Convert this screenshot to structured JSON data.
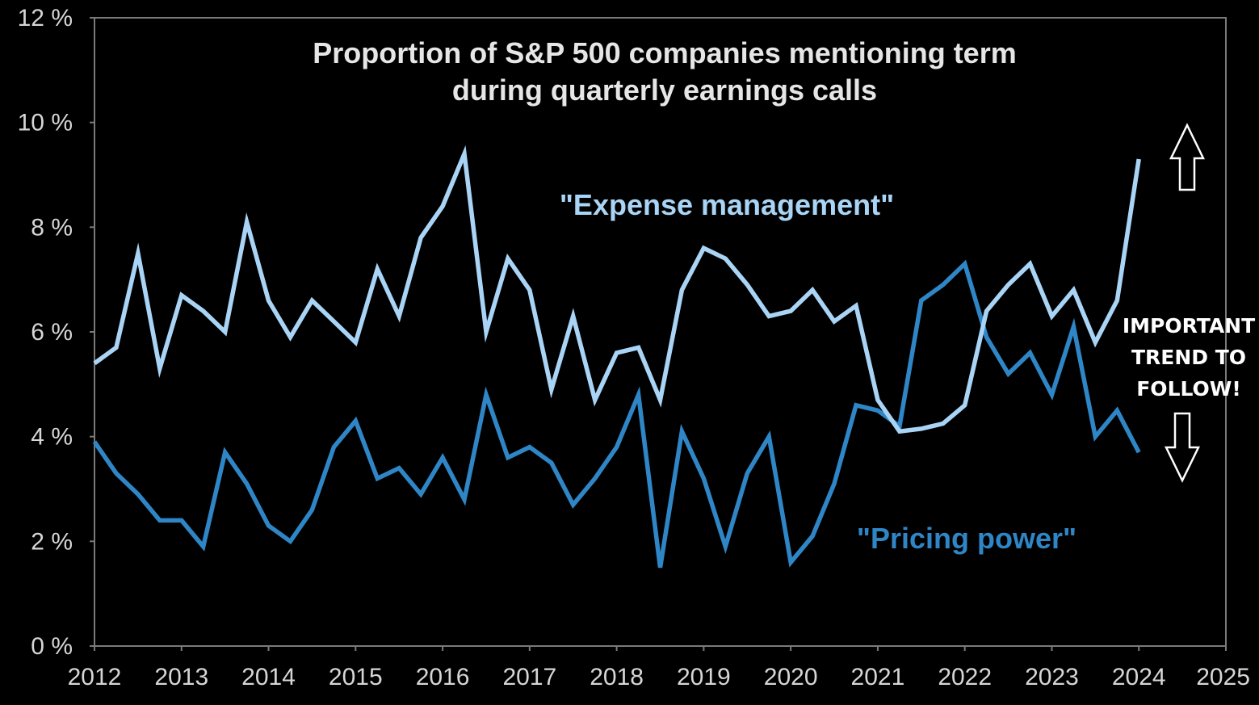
{
  "chart_data": {
    "type": "line",
    "title_lines": [
      "Proportion of S&P 500 companies mentioning term",
      "during quarterly earnings calls"
    ],
    "xlabel": "",
    "ylabel": "",
    "xlim": [
      2012,
      2025
    ],
    "ylim": [
      0,
      12
    ],
    "x_ticks": [
      2012,
      2013,
      2014,
      2015,
      2016,
      2017,
      2018,
      2019,
      2020,
      2021,
      2022,
      2023,
      2024,
      2025
    ],
    "x_tick_labels": [
      "2012",
      "2013",
      "2014",
      "2015",
      "2016",
      "2017",
      "2018",
      "2019",
      "2020",
      "2021",
      "2022",
      "2023",
      "2024",
      "2025"
    ],
    "y_ticks": [
      0,
      2,
      4,
      6,
      8,
      10,
      12
    ],
    "y_tick_labels": [
      "0 %",
      "2 %",
      "4 %",
      "6 %",
      "8 %",
      "10 %",
      "12 %"
    ],
    "grid": false,
    "legend": "none",
    "series": [
      {
        "name": "\"Expense management\"",
        "color": "#a9d4f5",
        "label_text": "\"Expense management\"",
        "x": [
          2012.0,
          2012.25,
          2012.5,
          2012.75,
          2013.0,
          2013.25,
          2013.5,
          2013.75,
          2014.0,
          2014.25,
          2014.5,
          2014.75,
          2015.0,
          2015.25,
          2015.5,
          2015.75,
          2016.0,
          2016.25,
          2016.5,
          2016.75,
          2017.0,
          2017.25,
          2017.5,
          2017.75,
          2018.0,
          2018.25,
          2018.5,
          2018.75,
          2019.0,
          2019.25,
          2019.5,
          2019.75,
          2020.0,
          2020.25,
          2020.5,
          2020.75,
          2021.0,
          2021.25,
          2021.5,
          2021.75,
          2022.0,
          2022.25,
          2022.5,
          2022.75,
          2023.0,
          2023.25,
          2023.5,
          2023.75,
          2024.0
        ],
        "values": [
          5.4,
          5.7,
          7.5,
          5.3,
          6.7,
          6.4,
          6.0,
          8.1,
          6.6,
          5.9,
          6.6,
          6.2,
          5.8,
          7.2,
          6.3,
          7.8,
          8.4,
          9.4,
          6.0,
          7.4,
          6.8,
          4.9,
          6.3,
          4.7,
          5.6,
          5.7,
          4.7,
          6.8,
          7.6,
          7.4,
          6.9,
          6.3,
          6.4,
          6.8,
          6.2,
          6.5,
          4.7,
          4.1,
          4.15,
          4.25,
          4.6,
          6.4,
          6.9,
          7.3,
          6.3,
          6.8,
          5.8,
          6.6,
          9.3
        ]
      },
      {
        "name": "\"Pricing power\"",
        "color": "#2f86c6",
        "label_text": "\"Pricing power\"",
        "x": [
          2012.0,
          2012.25,
          2012.5,
          2012.75,
          2013.0,
          2013.25,
          2013.5,
          2013.75,
          2014.0,
          2014.25,
          2014.5,
          2014.75,
          2015.0,
          2015.25,
          2015.5,
          2015.75,
          2016.0,
          2016.25,
          2016.5,
          2016.75,
          2017.0,
          2017.25,
          2017.5,
          2017.75,
          2018.0,
          2018.25,
          2018.5,
          2018.75,
          2019.0,
          2019.25,
          2019.5,
          2019.75,
          2020.0,
          2020.25,
          2020.5,
          2020.75,
          2021.0,
          2021.25,
          2021.5,
          2021.75,
          2022.0,
          2022.25,
          2022.5,
          2022.75,
          2023.0,
          2023.25,
          2023.5,
          2023.75,
          2024.0
        ],
        "values": [
          3.9,
          3.3,
          2.9,
          2.4,
          2.4,
          1.9,
          3.7,
          3.1,
          2.3,
          2.0,
          2.6,
          3.8,
          4.3,
          3.2,
          3.4,
          2.9,
          3.6,
          2.8,
          4.8,
          3.6,
          3.8,
          3.5,
          2.7,
          3.2,
          3.8,
          4.8,
          1.5,
          4.1,
          3.2,
          1.9,
          3.3,
          4.0,
          1.6,
          2.1,
          3.1,
          4.6,
          4.5,
          4.2,
          6.6,
          6.9,
          7.3,
          5.9,
          5.2,
          5.6,
          4.8,
          6.1,
          4.0,
          4.5,
          3.7
        ]
      }
    ],
    "annotations": [
      {
        "kind": "text-box",
        "lines": [
          "IMPORTANT",
          "TREND TO",
          "FOLLOW!"
        ],
        "placement": "right of plot"
      },
      {
        "kind": "arrow",
        "direction": "up",
        "placement": "right, upper"
      },
      {
        "kind": "arrow",
        "direction": "down",
        "placement": "right, lower"
      }
    ],
    "colors": {
      "background": "#000000",
      "axis": "#7a7a7a",
      "text": "#d6d6d6",
      "note": "#ffffff"
    }
  }
}
